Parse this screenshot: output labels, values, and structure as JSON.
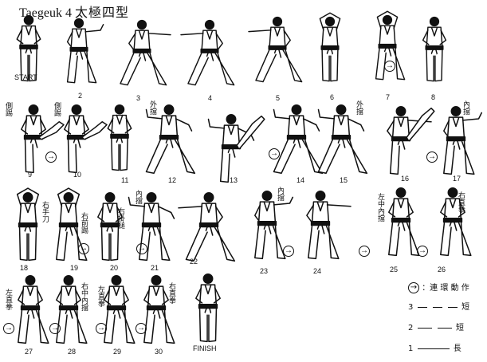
{
  "title": {
    "latin": "Taegeuk  4",
    "cjk": "太極四型"
  },
  "figure_numbers": [
    "START",
    "2",
    "3",
    "4",
    "5",
    "6",
    "7",
    "8",
    "9",
    "10",
    "11",
    "12",
    "13",
    "14",
    "15",
    "16",
    "17",
    "18",
    "19",
    "20",
    "21",
    "22",
    "23",
    "24",
    "25",
    "26",
    "27",
    "28",
    "29",
    "30",
    "FINISH"
  ],
  "annotations": [
    "側踢",
    "側踢",
    "外擋",
    "外擋",
    "內擋",
    "右手刀",
    "右前踢",
    "右掛槌",
    "內擋",
    "內擋",
    "左中內擋",
    "右直拳",
    "左直拳",
    "右中內擋",
    "左直拳",
    "右直拳"
  ],
  "legend": {
    "arrow_symbol": "→",
    "arrow_text": "：連 環 動 作",
    "rows": [
      {
        "n": "3",
        "label": "短"
      },
      {
        "n": "2",
        "label": "短"
      },
      {
        "n": "1",
        "label": "長"
      }
    ]
  }
}
